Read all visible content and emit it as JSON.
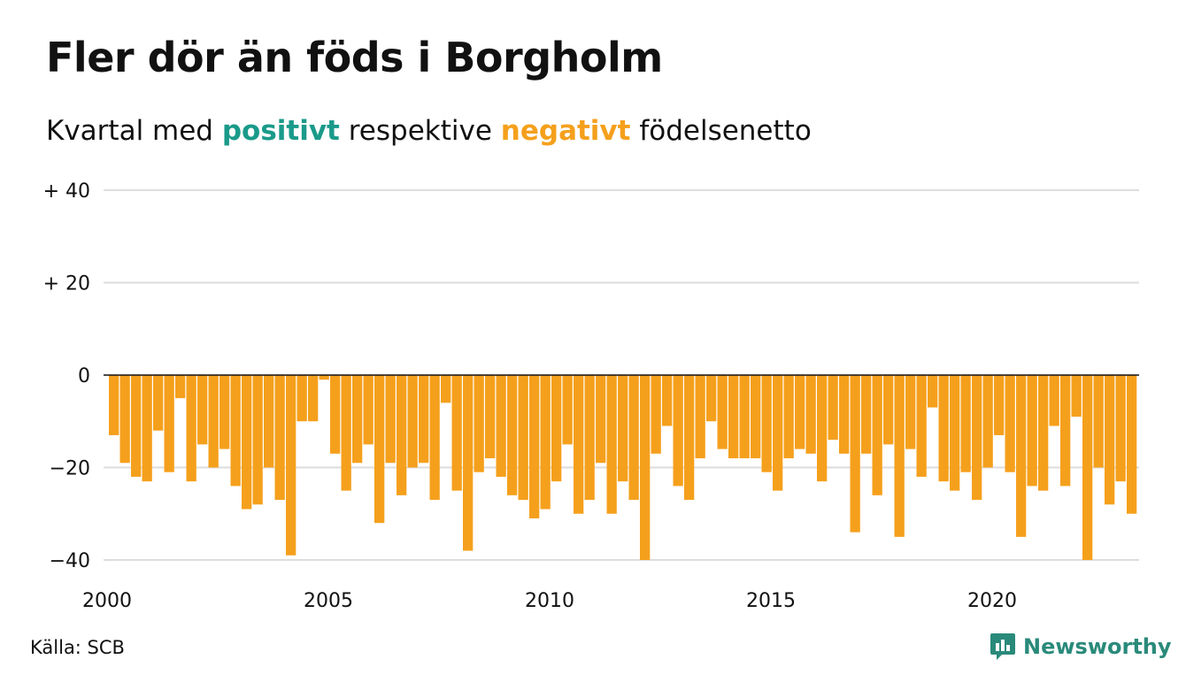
{
  "header": {
    "title": "Fler dör än föds i Borgholm",
    "subtitle_prefix": "Kvartal med ",
    "subtitle_positive": "positivt",
    "subtitle_middle": " respektive ",
    "subtitle_negative": "negativt",
    "subtitle_suffix": " födelsenetto"
  },
  "colors": {
    "positive": "#1a9a8a",
    "negative": "#f5a01c",
    "grid": "#dddddd",
    "brand": "#2a8a7a"
  },
  "footer": {
    "source": "Källa: SCB",
    "brand": "Newsworthy"
  },
  "chart_data": {
    "type": "bar",
    "ylim": [
      -40,
      40
    ],
    "ytick_values": [
      40,
      20,
      0,
      -20,
      -40
    ],
    "ytick_labels": [
      "+ 40",
      "+ 20",
      "0",
      "−20",
      "−40"
    ],
    "xtick_labels": [
      "2000",
      "2005",
      "2010",
      "2015",
      "2020"
    ],
    "grid": true,
    "series": [
      {
        "values": [
          -13,
          -19,
          -22,
          -23,
          -12,
          -21,
          -5,
          -23,
          -15,
          -20,
          -16,
          -24,
          -29,
          -28,
          -20,
          -27,
          -39,
          -10,
          -10,
          -1,
          -17,
          -25,
          -19,
          -15,
          -32,
          -19,
          -26,
          -20,
          -19,
          -27,
          -6,
          -25,
          -38,
          -21,
          -18,
          -22,
          -26,
          -27,
          -31,
          -29,
          -23,
          -15,
          -30,
          -27,
          -19,
          -30,
          -23,
          -27,
          -40,
          -17,
          -11,
          -24,
          -27,
          -18,
          -10,
          -16,
          -18,
          -18,
          -18,
          -21,
          -25,
          -18,
          -16,
          -17,
          -23,
          -14,
          -17,
          -34,
          -17,
          -26,
          -15,
          -35,
          -16,
          -22,
          -7,
          -23,
          -25,
          -21,
          -27,
          -20,
          -13,
          -21,
          -35,
          -24,
          -25,
          -11,
          -24,
          -9,
          -40,
          -20,
          -28,
          -23,
          -30
        ]
      }
    ]
  }
}
